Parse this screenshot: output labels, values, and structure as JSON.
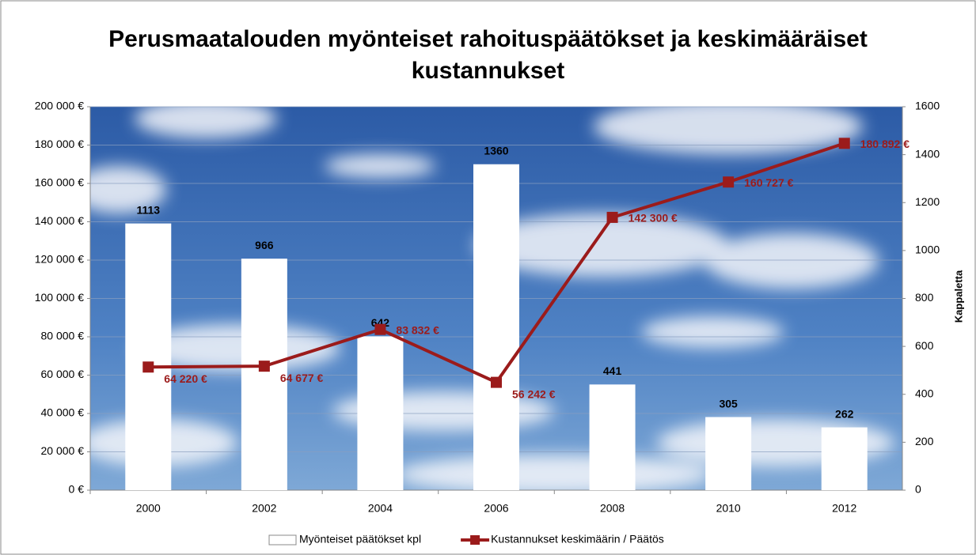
{
  "chart_data": {
    "type": "combo",
    "title": "Perusmaatalouden myönteiset rahoituspäätökset ja keskimääräiset kustannukset",
    "y2label": "Kappaletta",
    "categories": [
      "2000",
      "2002",
      "2004",
      "2006",
      "2008",
      "2010",
      "2012"
    ],
    "series": [
      {
        "name": "Myönteiset päätökset kpl",
        "type": "bar",
        "axis": "y2",
        "color": "#ffffff",
        "values": [
          1113,
          966,
          642,
          1360,
          441,
          305,
          262
        ]
      },
      {
        "name": "Kustannukset keskimäärin / Päätös",
        "type": "line",
        "axis": "y",
        "color": "#9b1b1b",
        "values": [
          64220,
          64677,
          83832,
          56242,
          142300,
          160727,
          180892
        ],
        "value_labels": [
          "64 220 €",
          "64 677 €",
          "83 832 €",
          "56 242 €",
          "142 300 €",
          "160 727 €",
          "180 892 €"
        ]
      }
    ],
    "ylim": [
      0,
      200000
    ],
    "yticks": [
      {
        "value": 0,
        "label": "0 €"
      },
      {
        "value": 20000,
        "label": "20 000 €"
      },
      {
        "value": 40000,
        "label": "40 000 €"
      },
      {
        "value": 60000,
        "label": "60 000 €"
      },
      {
        "value": 80000,
        "label": "80 000 €"
      },
      {
        "value": 100000,
        "label": "100 000 €"
      },
      {
        "value": 120000,
        "label": "120 000 €"
      },
      {
        "value": 140000,
        "label": "140 000 €"
      },
      {
        "value": 160000,
        "label": "160 000 €"
      },
      {
        "value": 180000,
        "label": "180 000 €"
      },
      {
        "value": 200000,
        "label": "200 000 €"
      }
    ],
    "y2lim": [
      0,
      1600
    ],
    "y2ticks": [
      0,
      200,
      400,
      600,
      800,
      1000,
      1200,
      1400,
      1600
    ],
    "grid": true,
    "legend": "bottom"
  }
}
